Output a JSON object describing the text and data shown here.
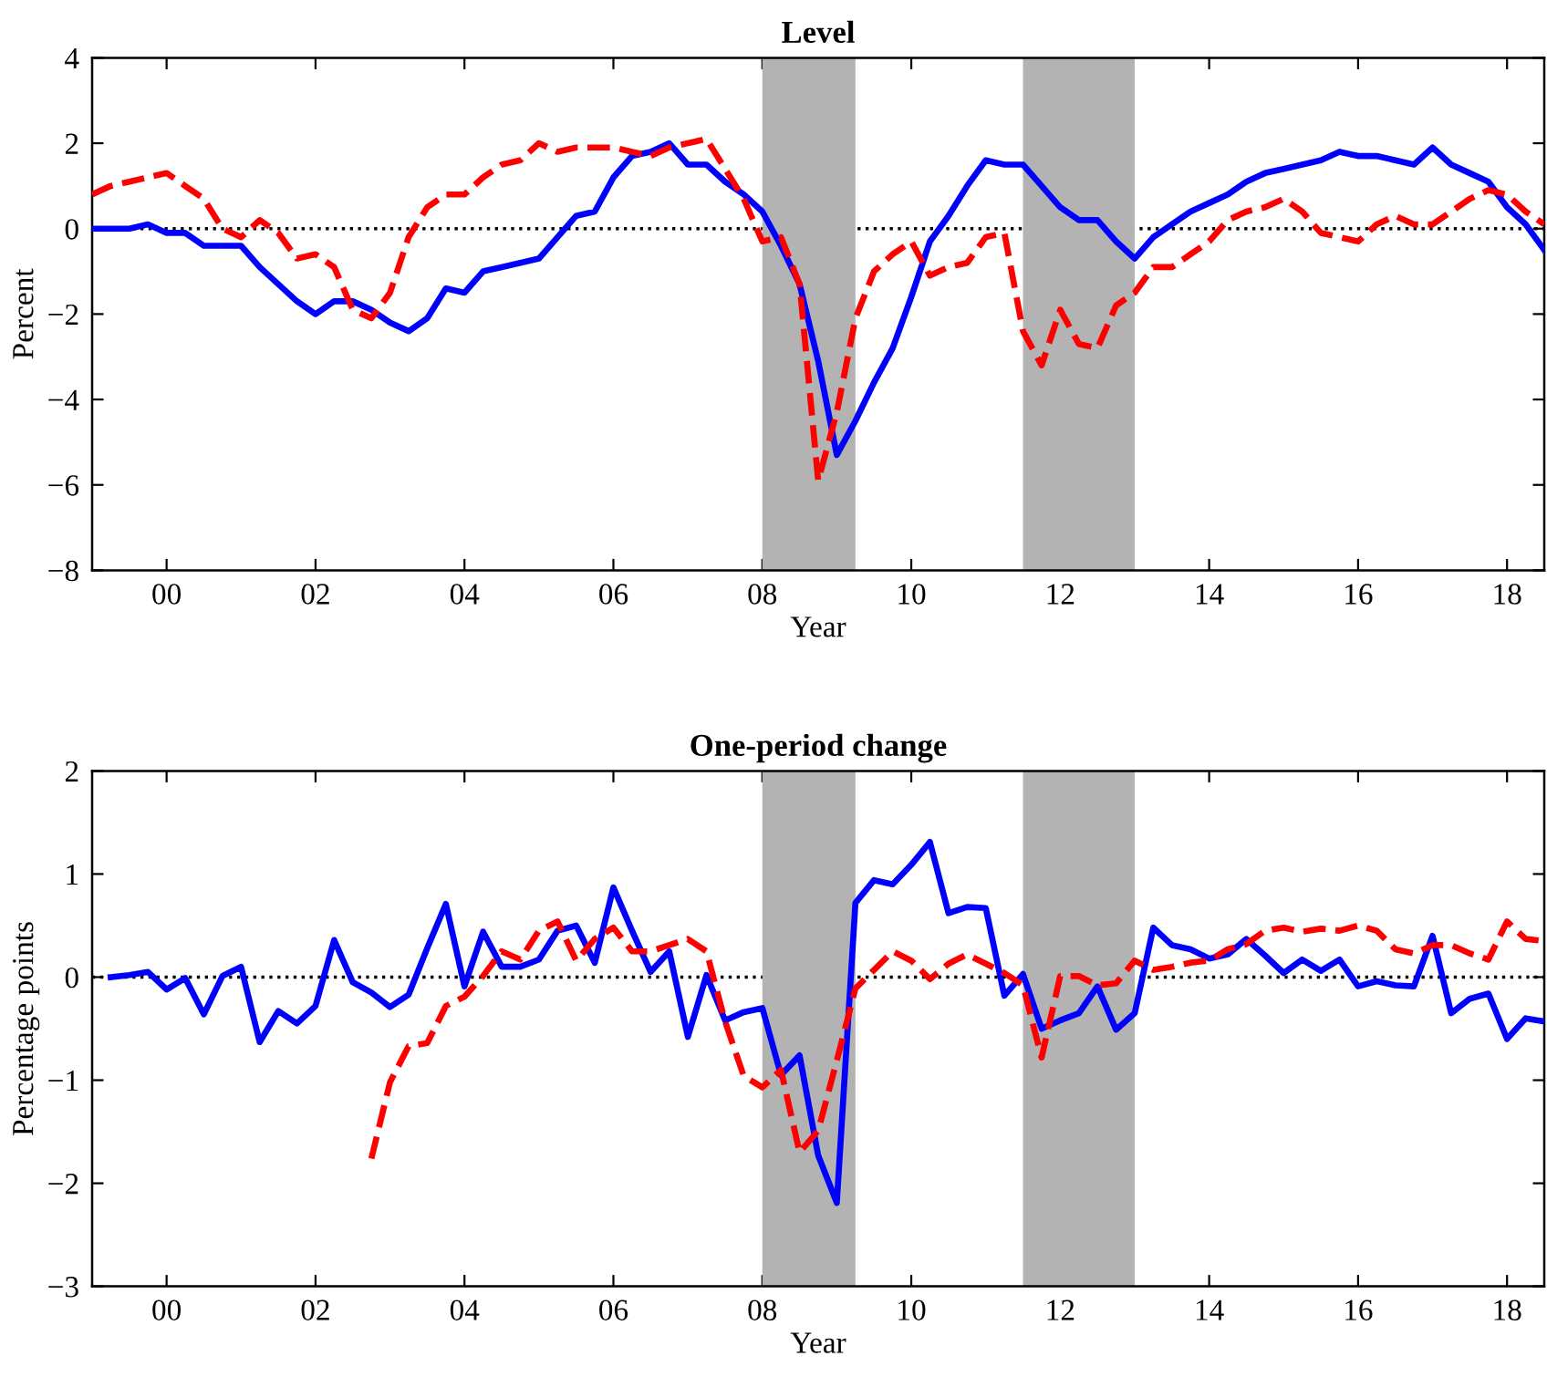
{
  "chart_data": [
    {
      "type": "line",
      "title": "Level",
      "xlabel": "Year",
      "ylabel": "Percent",
      "xlim": [
        1999,
        2018.5
      ],
      "ylim": [
        -8,
        4
      ],
      "xticks": [
        {
          "value": 2000,
          "label": "00"
        },
        {
          "value": 2002,
          "label": "02"
        },
        {
          "value": 2004,
          "label": "04"
        },
        {
          "value": 2006,
          "label": "06"
        },
        {
          "value": 2008,
          "label": "08"
        },
        {
          "value": 2010,
          "label": "10"
        },
        {
          "value": 2012,
          "label": "12"
        },
        {
          "value": 2014,
          "label": "14"
        },
        {
          "value": 2016,
          "label": "16"
        },
        {
          "value": 2018,
          "label": "18"
        }
      ],
      "yticks": [
        -8,
        -6,
        -4,
        -2,
        0,
        2,
        4
      ],
      "x": [
        1999,
        1999.25,
        1999.5,
        1999.75,
        2000,
        2000.25,
        2000.5,
        2000.75,
        2001,
        2001.25,
        2001.5,
        2001.75,
        2002,
        2002.25,
        2002.5,
        2002.75,
        2003,
        2003.25,
        2003.5,
        2003.75,
        2004,
        2004.25,
        2004.5,
        2004.75,
        2005,
        2005.25,
        2005.5,
        2005.75,
        2006,
        2006.25,
        2006.5,
        2006.75,
        2007,
        2007.25,
        2007.5,
        2007.75,
        2008,
        2008.25,
        2008.5,
        2008.75,
        2009,
        2009.25,
        2009.5,
        2009.75,
        2010,
        2010.25,
        2010.5,
        2010.75,
        2011,
        2011.25,
        2011.5,
        2011.75,
        2012,
        2012.25,
        2012.5,
        2012.75,
        2013,
        2013.25,
        2013.5,
        2013.75,
        2014,
        2014.25,
        2014.5,
        2014.75,
        2015,
        2015.25,
        2015.5,
        2015.75,
        2016,
        2016.25,
        2016.5,
        2016.75,
        2017,
        2017.25,
        2017.5,
        2017.75,
        2018,
        2018.25,
        2018.5
      ],
      "series": [
        {
          "color": "#0000ff",
          "line_style": "solid",
          "values": [
            0.0,
            0.0,
            0.0,
            0.1,
            -0.1,
            -0.1,
            -0.4,
            -0.4,
            -0.4,
            -0.9,
            -1.3,
            -1.7,
            -2.0,
            -1.7,
            -1.7,
            -1.9,
            -2.2,
            -2.4,
            -2.1,
            -1.4,
            -1.5,
            -1.0,
            -0.9,
            -0.8,
            -0.7,
            -0.2,
            0.3,
            0.4,
            1.2,
            1.7,
            1.8,
            2.0,
            1.5,
            1.5,
            1.1,
            0.8,
            0.4,
            -0.4,
            -1.3,
            -3.1,
            -5.3,
            -4.5,
            -3.6,
            -2.8,
            -1.6,
            -0.3,
            0.3,
            1.0,
            1.6,
            1.5,
            1.5,
            1.0,
            0.5,
            0.2,
            0.2,
            -0.3,
            -0.7,
            -0.2,
            0.1,
            0.4,
            0.6,
            0.8,
            1.1,
            1.3,
            1.4,
            1.5,
            1.6,
            1.8,
            1.7,
            1.7,
            1.6,
            1.5,
            1.9,
            1.5,
            1.3,
            1.1,
            0.5,
            0.1,
            -0.5
          ]
        },
        {
          "color": "#ff0000",
          "line_style": "dashed",
          "values": [
            0.8,
            1.0,
            1.1,
            1.2,
            1.3,
            1.0,
            0.7,
            0.0,
            -0.2,
            0.2,
            -0.1,
            -0.7,
            -0.6,
            -0.9,
            -1.9,
            -2.1,
            -1.5,
            -0.2,
            0.5,
            0.8,
            0.8,
            1.2,
            1.5,
            1.6,
            2.0,
            1.8,
            1.9,
            1.9,
            1.9,
            1.8,
            1.7,
            1.9,
            2.0,
            2.1,
            1.4,
            0.7,
            -0.3,
            -0.2,
            -1.3,
            -5.9,
            -4.3,
            -2.1,
            -1.0,
            -0.6,
            -0.3,
            -1.1,
            -0.9,
            -0.8,
            -0.2,
            -0.1,
            -2.4,
            -3.2,
            -1.9,
            -2.7,
            -2.8,
            -1.8,
            -1.5,
            -0.9,
            -0.9,
            -0.6,
            -0.3,
            0.2,
            0.4,
            0.5,
            0.7,
            0.4,
            -0.1,
            -0.2,
            -0.3,
            0.1,
            0.3,
            0.1,
            0.1,
            0.4,
            0.7,
            0.9,
            0.8,
            0.4,
            0.1
          ]
        }
      ],
      "bands": [
        {
          "axis": "x",
          "from": 2008,
          "to": 2009.25,
          "color": "#b3b3b3"
        },
        {
          "axis": "x",
          "from": 2011.5,
          "to": 2013,
          "color": "#b3b3b3"
        }
      ],
      "ref_lines": [
        {
          "axis": "y",
          "value": 0,
          "color": "#000000",
          "line_style": "dotted"
        }
      ]
    },
    {
      "type": "line",
      "title": "One-period change",
      "xlabel": "Year",
      "ylabel": "Percentage points",
      "xlim": [
        1999,
        2018.5
      ],
      "ylim": [
        -3,
        2
      ],
      "xticks": [
        {
          "value": 2000,
          "label": "00"
        },
        {
          "value": 2002,
          "label": "02"
        },
        {
          "value": 2004,
          "label": "04"
        },
        {
          "value": 2006,
          "label": "06"
        },
        {
          "value": 2008,
          "label": "08"
        },
        {
          "value": 2010,
          "label": "10"
        },
        {
          "value": 2012,
          "label": "12"
        },
        {
          "value": 2014,
          "label": "14"
        },
        {
          "value": 2016,
          "label": "16"
        },
        {
          "value": 2018,
          "label": "18"
        }
      ],
      "yticks": [
        -3,
        -2,
        -1,
        0,
        1,
        2
      ],
      "series": [
        {
          "color": "#0000ff",
          "line_style": "solid",
          "x": [
            1999.25,
            1999.5,
            1999.75,
            2000,
            2000.25,
            2000.5,
            2000.75,
            2001,
            2001.25,
            2001.5,
            2001.75,
            2002,
            2002.25,
            2002.5,
            2002.75,
            2003,
            2003.25,
            2003.5,
            2003.75,
            2004,
            2004.25,
            2004.5,
            2004.75,
            2005,
            2005.25,
            2005.5,
            2005.75,
            2006,
            2006.25,
            2006.5,
            2006.75,
            2007,
            2007.25,
            2007.5,
            2007.75,
            2008,
            2008.25,
            2008.5,
            2008.75,
            2009,
            2009.25,
            2009.5,
            2009.75,
            2010,
            2010.25,
            2010.5,
            2010.75,
            2011,
            2011.25,
            2011.5,
            2011.75,
            2012,
            2012.25,
            2012.5,
            2012.75,
            2013,
            2013.25,
            2013.5,
            2013.75,
            2014,
            2014.25,
            2014.5,
            2014.75,
            2015,
            2015.25,
            2015.5,
            2015.75,
            2016,
            2016.25,
            2016.5,
            2016.75,
            2017,
            2017.25,
            2017.5,
            2017.75,
            2018,
            2018.25,
            2018.5
          ],
          "values": [
            0.0,
            0.02,
            0.05,
            -0.12,
            -0.01,
            -0.36,
            0.01,
            0.1,
            -0.63,
            -0.33,
            -0.45,
            -0.28,
            0.36,
            -0.05,
            -0.15,
            -0.29,
            -0.17,
            0.28,
            0.71,
            -0.09,
            0.44,
            0.1,
            0.1,
            0.17,
            0.45,
            0.5,
            0.14,
            0.87,
            0.45,
            0.05,
            0.25,
            -0.58,
            0.02,
            -0.42,
            -0.34,
            -0.3,
            -0.95,
            -0.76,
            -1.73,
            -2.19,
            0.72,
            0.94,
            0.9,
            1.09,
            1.31,
            0.62,
            0.68,
            0.67,
            -0.18,
            0.03,
            -0.5,
            -0.42,
            -0.35,
            -0.09,
            -0.51,
            -0.35,
            0.48,
            0.31,
            0.27,
            0.18,
            0.22,
            0.37,
            0.21,
            0.04,
            0.17,
            0.06,
            0.17,
            -0.09,
            -0.04,
            -0.08,
            -0.09,
            0.4,
            -0.35,
            -0.21,
            -0.16,
            -0.6,
            -0.4,
            -0.43
          ]
        },
        {
          "color": "#ff0000",
          "line_style": "dashed",
          "x": [
            2002.75,
            2003,
            2003.25,
            2003.5,
            2003.75,
            2004,
            2004.25,
            2004.5,
            2004.75,
            2005,
            2005.25,
            2005.5,
            2005.75,
            2006,
            2006.25,
            2006.5,
            2006.75,
            2007,
            2007.25,
            2007.5,
            2007.75,
            2008,
            2008.25,
            2008.5,
            2008.75,
            2009,
            2009.25,
            2009.5,
            2009.75,
            2010,
            2010.25,
            2010.5,
            2010.75,
            2011,
            2011.25,
            2011.5,
            2011.75,
            2012,
            2012.25,
            2012.5,
            2012.75,
            2013,
            2013.25,
            2013.5,
            2013.75,
            2014,
            2014.25,
            2014.5,
            2014.75,
            2015,
            2015.25,
            2015.5,
            2015.75,
            2016,
            2016.25,
            2016.5,
            2016.75,
            2017,
            2017.25,
            2017.5,
            2017.75,
            2018,
            2018.25,
            2018.5
          ],
          "values": [
            -1.76,
            -1.02,
            -0.67,
            -0.64,
            -0.28,
            -0.19,
            0.01,
            0.25,
            0.17,
            0.45,
            0.54,
            0.16,
            0.37,
            0.48,
            0.25,
            0.25,
            0.31,
            0.37,
            0.25,
            -0.43,
            -0.96,
            -1.07,
            -0.9,
            -1.7,
            -1.49,
            -0.81,
            -0.11,
            0.07,
            0.25,
            0.16,
            -0.02,
            0.13,
            0.22,
            0.13,
            0.04,
            -0.08,
            -0.78,
            0.01,
            0.01,
            -0.08,
            -0.06,
            0.16,
            0.07,
            0.1,
            0.14,
            0.16,
            0.27,
            0.32,
            0.45,
            0.48,
            0.44,
            0.47,
            0.45,
            0.5,
            0.45,
            0.27,
            0.23,
            0.31,
            0.31,
            0.23,
            0.17,
            0.54,
            0.37,
            0.35
          ]
        }
      ],
      "bands": [
        {
          "axis": "x",
          "from": 2008,
          "to": 2009.25,
          "color": "#b3b3b3"
        },
        {
          "axis": "x",
          "from": 2011.5,
          "to": 2013,
          "color": "#b3b3b3"
        }
      ],
      "ref_lines": [
        {
          "axis": "y",
          "value": 0,
          "color": "#000000",
          "line_style": "dotted"
        }
      ]
    }
  ]
}
